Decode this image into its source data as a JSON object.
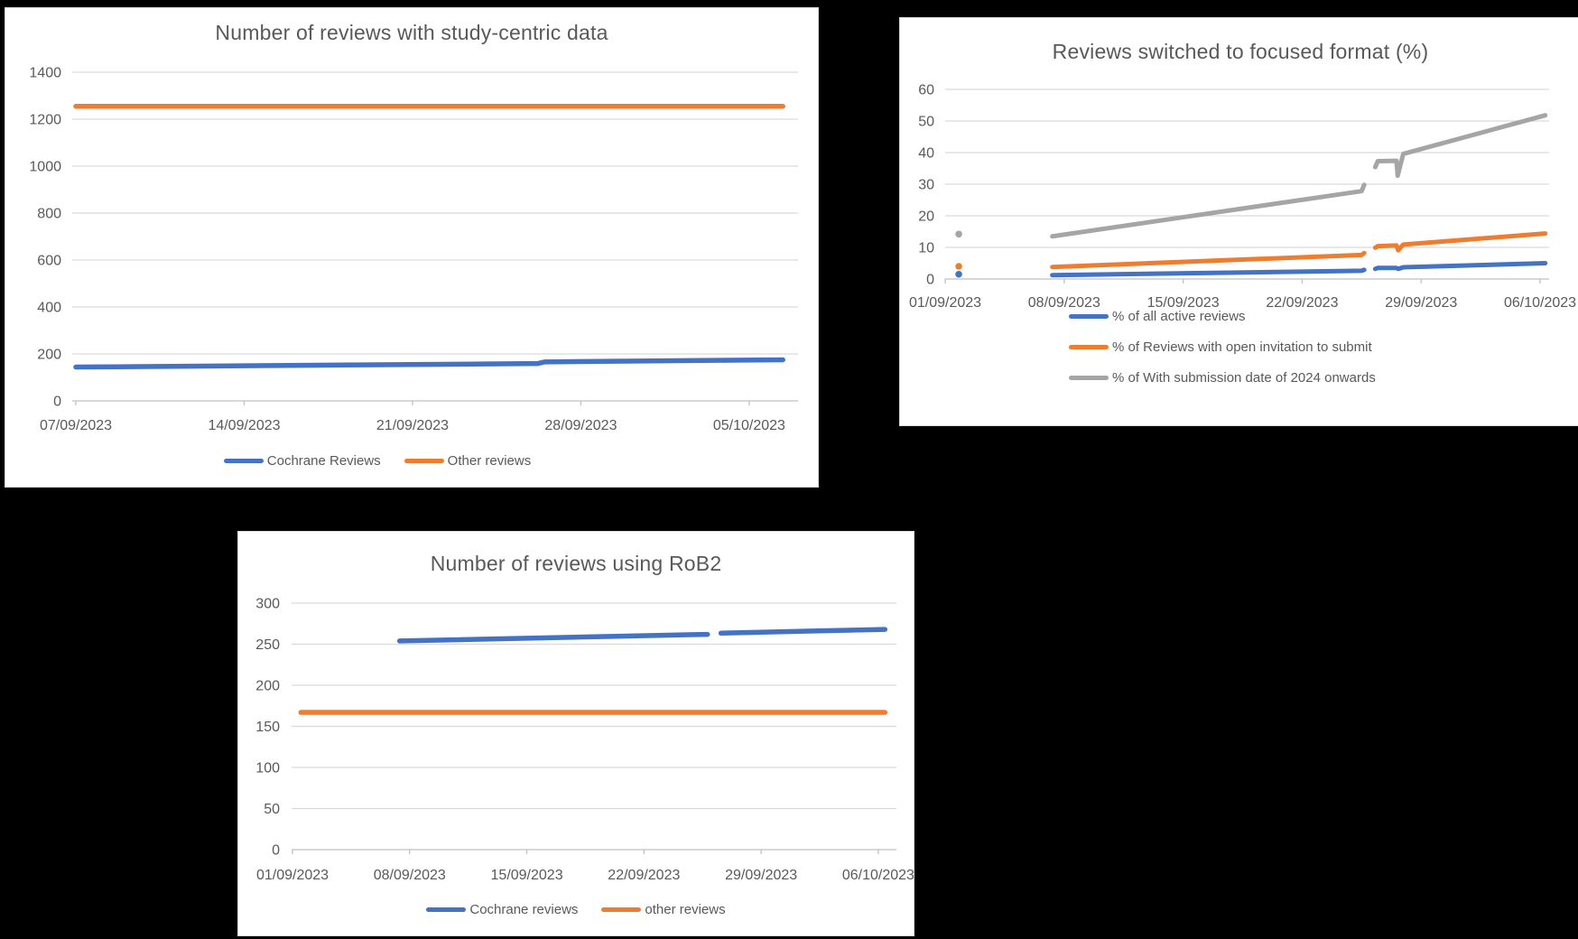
{
  "page": {
    "background": "#000000",
    "card_background": "#FFFFFF",
    "card_border": "#D9D9D9"
  },
  "colors": {
    "blue": "#4472C4",
    "orange": "#ED7D31",
    "gray": "#A5A5A5",
    "text": "#595959",
    "gridline": "#D9D9D9",
    "axis_line": "#C0C0C0"
  },
  "chart_data": [
    {
      "id": "sc",
      "type": "line",
      "title": "Number of reviews with study-centric data",
      "ylim": [
        0,
        1400
      ],
      "y_ticks": [
        0,
        200,
        400,
        600,
        800,
        1000,
        1200,
        1400
      ],
      "x_tick_labels": [
        "07/09/2023",
        "14/09/2023",
        "21/09/2023",
        "28/09/2023",
        "05/10/2023"
      ],
      "x_tick_days": [
        6,
        13,
        20,
        27,
        34
      ],
      "grid": true,
      "legend_position": "bottom-horizontal",
      "series": [
        {
          "name": "Cochrane Reviews",
          "color": "#4472C4",
          "segments": [
            [
              [
                6,
                144
              ],
              [
                25.2,
                159
              ],
              [
                25.5,
                166
              ],
              [
                35.4,
                175
              ]
            ]
          ],
          "dots": []
        },
        {
          "name": "Other reviews",
          "color": "#ED7D31",
          "segments": [
            [
              [
                6,
                1255
              ],
              [
                35.4,
                1255
              ]
            ]
          ],
          "dots": []
        }
      ]
    },
    {
      "id": "ff",
      "type": "line",
      "title": "Reviews switched to focused format (%)",
      "ylim": [
        0,
        60
      ],
      "y_ticks": [
        0,
        10,
        20,
        30,
        40,
        50,
        60
      ],
      "x_tick_labels": [
        "01/09/2023",
        "08/09/2023",
        "15/09/2023",
        "22/09/2023",
        "29/09/2023",
        "06/10/2023"
      ],
      "x_tick_days": [
        0,
        7,
        14,
        21,
        28,
        35
      ],
      "grid": true,
      "legend_position": "bottom-vertical",
      "series": [
        {
          "name": "% of all active reviews",
          "color": "#4472C4",
          "segments": [
            [
              [
                6.3,
                1.2
              ],
              [
                24.5,
                2.6
              ],
              [
                24.65,
                2.9
              ]
            ],
            [
              [
                25.3,
                3.2
              ],
              [
                25.45,
                3.5
              ],
              [
                26.55,
                3.5
              ],
              [
                26.65,
                3.2
              ],
              [
                26.95,
                3.7
              ],
              [
                35.3,
                5.0
              ]
            ]
          ],
          "dots": [
            [
              0.8,
              1.5
            ]
          ]
        },
        {
          "name": "% of Reviews with open invitation to submit",
          "color": "#ED7D31",
          "segments": [
            [
              [
                6.3,
                3.8
              ],
              [
                24.5,
                7.6
              ],
              [
                24.65,
                8.2
              ]
            ],
            [
              [
                25.3,
                9.9
              ],
              [
                25.45,
                10.4
              ],
              [
                26.55,
                10.6
              ],
              [
                26.65,
                9.1
              ],
              [
                26.95,
                10.9
              ],
              [
                35.3,
                14.4
              ]
            ]
          ],
          "dots": [
            [
              0.8,
              4.0
            ]
          ]
        },
        {
          "name": "% of With submission date of 2024 onwards",
          "color": "#A5A5A5",
          "segments": [
            [
              [
                6.3,
                13.5
              ],
              [
                24.5,
                27.8
              ],
              [
                24.65,
                29.8
              ]
            ],
            [
              [
                25.3,
                35.4
              ],
              [
                25.45,
                37.3
              ],
              [
                26.55,
                37.4
              ],
              [
                26.62,
                32.7
              ],
              [
                26.95,
                39.6
              ],
              [
                35.3,
                51.8
              ]
            ]
          ],
          "dots": [
            [
              0.8,
              14.2
            ]
          ]
        }
      ]
    },
    {
      "id": "rob2",
      "type": "line",
      "title": "Number of reviews using RoB2",
      "ylim": [
        0,
        300
      ],
      "y_ticks": [
        0,
        50,
        100,
        150,
        200,
        250,
        300
      ],
      "x_tick_labels": [
        "01/09/2023",
        "08/09/2023",
        "15/09/2023",
        "22/09/2023",
        "29/09/2023",
        "06/10/2023"
      ],
      "x_tick_days": [
        0,
        7,
        14,
        21,
        28,
        35
      ],
      "grid": true,
      "legend_position": "bottom-horizontal",
      "series": [
        {
          "name": "Cochrane reviews",
          "color": "#4472C4",
          "segments": [
            [
              [
                6.4,
                254
              ],
              [
                24.8,
                262
              ]
            ],
            [
              [
                25.6,
                263.5
              ],
              [
                35.4,
                268
              ]
            ]
          ],
          "dots": []
        },
        {
          "name": "other reviews",
          "color": "#ED7D31",
          "segments": [
            [
              [
                0.5,
                167
              ],
              [
                35.4,
                167
              ]
            ]
          ],
          "dots": []
        }
      ]
    }
  ]
}
